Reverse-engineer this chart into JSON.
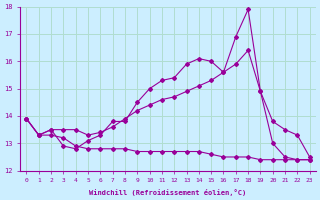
{
  "xlabel": "Windchill (Refroidissement éolien,°C)",
  "background_color": "#cceeff",
  "grid_color": "#b0ddd0",
  "line_color": "#990099",
  "xlim": [
    -0.5,
    23.5
  ],
  "ylim": [
    12,
    18
  ],
  "yticks": [
    12,
    13,
    14,
    15,
    16,
    17,
    18
  ],
  "xticks": [
    0,
    1,
    2,
    3,
    4,
    5,
    6,
    7,
    8,
    9,
    10,
    11,
    12,
    13,
    14,
    15,
    16,
    17,
    18,
    19,
    20,
    21,
    22,
    23
  ],
  "series1_x": [
    0,
    1,
    2,
    3,
    4,
    5,
    6,
    7,
    8,
    9,
    10,
    11,
    12,
    13,
    14,
    15,
    16,
    17,
    18,
    19,
    20,
    21,
    22,
    23
  ],
  "series1_y": [
    13.9,
    13.3,
    13.5,
    12.9,
    12.8,
    13.1,
    13.3,
    13.8,
    13.8,
    14.5,
    15.0,
    15.3,
    15.4,
    15.9,
    16.1,
    16.0,
    15.6,
    16.9,
    17.9,
    14.9,
    13.0,
    12.5,
    12.4,
    12.4
  ],
  "series2_x": [
    0,
    1,
    2,
    3,
    4,
    5,
    6,
    7,
    8,
    9,
    10,
    11,
    12,
    13,
    14,
    15,
    16,
    17,
    18,
    19,
    20,
    21,
    22,
    23
  ],
  "series2_y": [
    13.9,
    13.3,
    13.5,
    13.5,
    13.5,
    13.3,
    13.4,
    13.6,
    13.9,
    14.2,
    14.4,
    14.6,
    14.7,
    14.9,
    15.1,
    15.3,
    15.6,
    15.9,
    16.4,
    14.9,
    13.8,
    13.5,
    13.3,
    12.5
  ],
  "series3_x": [
    0,
    1,
    2,
    3,
    4,
    5,
    6,
    7,
    8,
    9,
    10,
    11,
    12,
    13,
    14,
    15,
    16,
    17,
    18,
    19,
    20,
    21,
    22,
    23
  ],
  "series3_y": [
    13.9,
    13.3,
    13.3,
    13.2,
    12.9,
    12.8,
    12.8,
    12.8,
    12.8,
    12.7,
    12.7,
    12.7,
    12.7,
    12.7,
    12.7,
    12.6,
    12.5,
    12.5,
    12.5,
    12.4,
    12.4,
    12.4,
    12.4,
    12.4
  ]
}
